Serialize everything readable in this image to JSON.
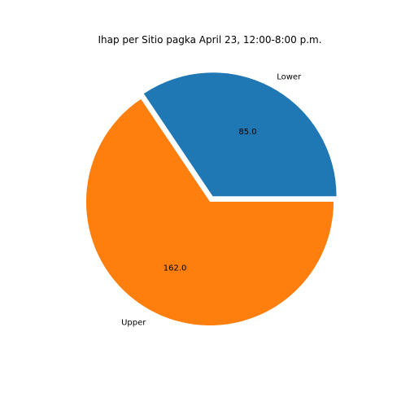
{
  "chart_data": {
    "type": "pie",
    "title": "Ihap per Sitio pagka April 23, 12:00-8:00 p.m.",
    "categories": [
      "Lower",
      "Upper"
    ],
    "values": [
      85.0,
      162.0
    ],
    "value_labels": [
      "85.0",
      "162.0"
    ],
    "colors": [
      "#1f77b4",
      "#ff7f0e"
    ],
    "explode": [
      0.05,
      0
    ],
    "start_angle_deg": 0,
    "legend": false
  }
}
